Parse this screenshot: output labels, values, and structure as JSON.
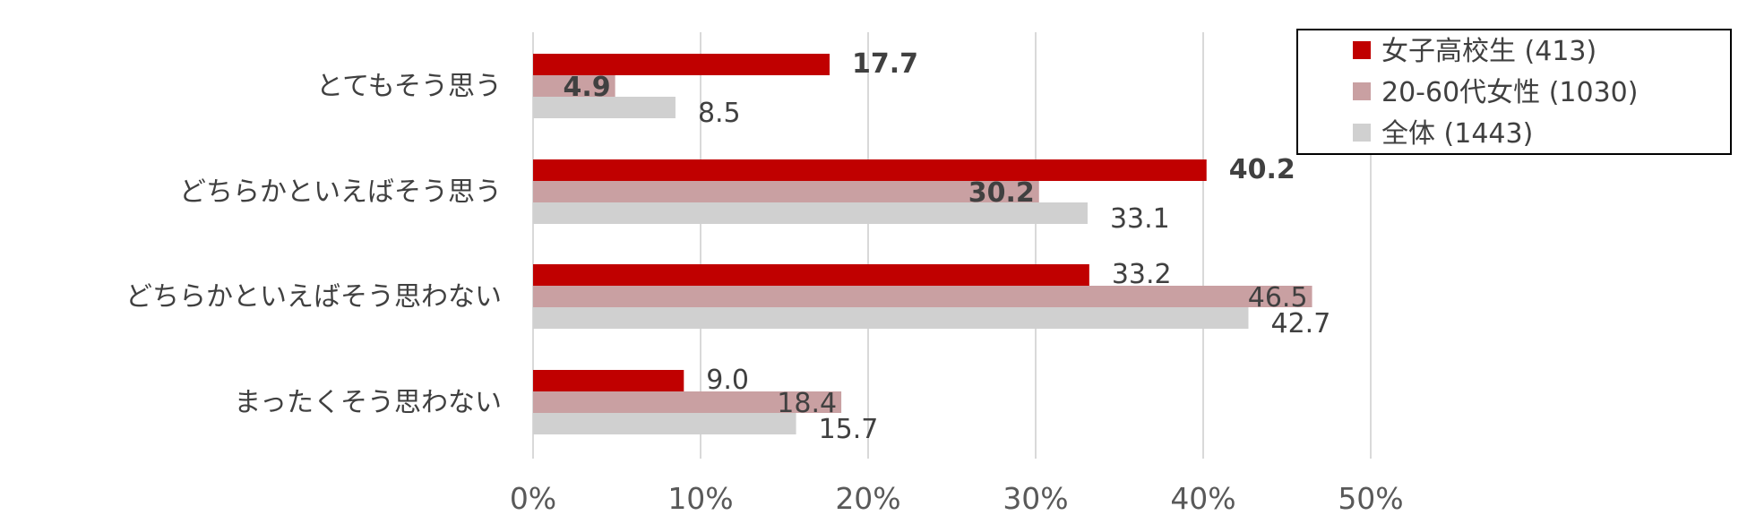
{
  "chart_data": {
    "type": "bar",
    "orientation": "horizontal",
    "categories": [
      "とてもそう思う",
      "どちらかといえばそう思う",
      "どちらかといえばそう思わない",
      "まったくそう思わない"
    ],
    "series": [
      {
        "name": "女子高校生 (413)",
        "values": [
          17.7,
          40.2,
          33.2,
          9.0
        ],
        "color": "#C00000"
      },
      {
        "name": "20-60代女性 (1030)",
        "values": [
          4.9,
          30.2,
          46.5,
          18.4
        ],
        "color": "#C9A0A2"
      },
      {
        "name": "全体 (1443)",
        "values": [
          8.5,
          33.1,
          42.7,
          15.7
        ],
        "color": "#D0D0D0"
      }
    ],
    "value_labels": [
      [
        "17.7",
        "40.2",
        "33.2",
        "9.0"
      ],
      [
        "4.9",
        "30.2",
        "46.5",
        "18.4"
      ],
      [
        "8.5",
        "33.1",
        "42.7",
        "15.7"
      ]
    ],
    "xlim": [
      0,
      50
    ],
    "x_ticks": [
      "0%",
      "10%",
      "20%",
      "30%",
      "40%",
      "50%"
    ],
    "grid": "vertical",
    "legend_position": "top-right",
    "title": "",
    "xlabel": "",
    "ylabel": ""
  }
}
